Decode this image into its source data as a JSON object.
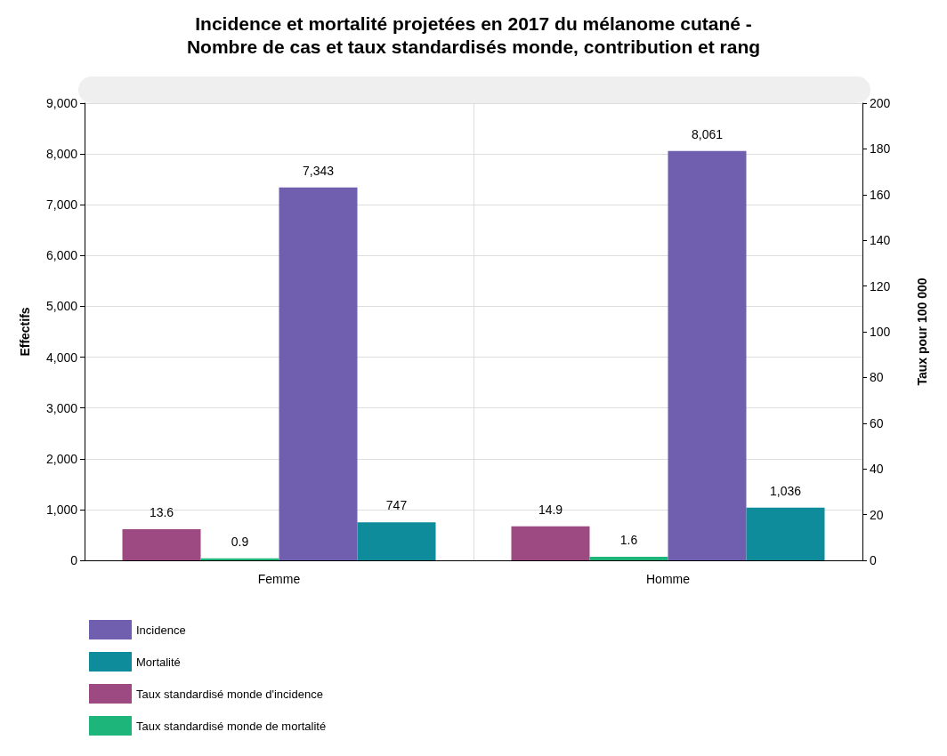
{
  "chart_data": {
    "type": "bar",
    "title": "Incidence et mortalité projetées en 2017 du mélanome cutané -\nNombre de cas et taux standardisés monde, contribution et rang",
    "categories": [
      "Femme",
      "Homme"
    ],
    "ylabel": "Effectifs",
    "y2label": "Taux pour 100 000",
    "series": [
      {
        "name": "Incidence",
        "color": "#6f5fae",
        "values": [
          7343,
          8061
        ],
        "value_labels": [
          "7,343",
          "8,061"
        ]
      },
      {
        "name": "Mortalité",
        "color": "#0f8c9c",
        "values": [
          747,
          1036
        ],
        "value_labels": [
          "747",
          "1,036"
        ]
      },
      {
        "name": "Taux standardisé monde d'incidence",
        "color": "#9e4a82",
        "values": [
          13.6,
          14.9
        ],
        "value_labels": [
          "13.6",
          "14.9"
        ],
        "axis": "y2"
      },
      {
        "name": "Taux standardisé monde de mortalité",
        "color": "#1db57a",
        "values": [
          0.9,
          1.6
        ],
        "value_labels": [
          "0.9",
          "1.6"
        ],
        "axis": "y2"
      }
    ],
    "ylim": [
      0,
      9000
    ],
    "yticks": [
      0,
      {
        "value": 1000,
        "label": "1,000"
      },
      {
        "value": 2000,
        "label": "2,000"
      },
      {
        "value": 3000,
        "label": "3,000"
      },
      {
        "value": 4000,
        "label": "4,000"
      },
      {
        "value": 5000,
        "label": "5,000"
      },
      {
        "value": 6000,
        "label": "6,000"
      },
      {
        "value": 7000,
        "label": "7,000"
      },
      {
        "value": 8000,
        "label": "8,000"
      },
      {
        "value": 9000,
        "label": "9,000"
      }
    ],
    "y2lim": [
      0,
      200
    ],
    "y2ticks": [
      0,
      20,
      40,
      60,
      80,
      100,
      120,
      140,
      160,
      180,
      200
    ],
    "grid": true,
    "legend": "bottom left"
  }
}
